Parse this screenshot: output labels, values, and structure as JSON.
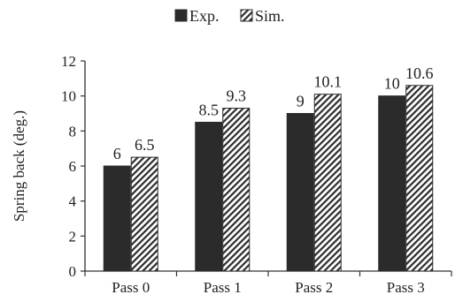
{
  "chart_data": {
    "type": "bar",
    "title": "",
    "xlabel": "",
    "ylabel": "Spring back (deg.)",
    "categories": [
      "Pass 0",
      "Pass 1",
      "Pass 2",
      "Pass 3"
    ],
    "series": [
      {
        "name": "Exp.",
        "values": [
          6,
          8.5,
          9,
          10
        ],
        "labels": [
          "6",
          "8.5",
          "9",
          "10"
        ],
        "color": "#2b2b2b",
        "pattern": "solid"
      },
      {
        "name": "Sim.",
        "values": [
          6.5,
          9.3,
          10.1,
          10.6
        ],
        "labels": [
          "6.5",
          "9.3",
          "10.1",
          "10.6"
        ],
        "color": "#2b2b2b",
        "pattern": "hatched"
      }
    ],
    "ylim": [
      0,
      12
    ],
    "yticks": [
      0,
      2,
      4,
      6,
      8,
      10,
      12
    ],
    "grid": false,
    "legend": "top-center"
  }
}
